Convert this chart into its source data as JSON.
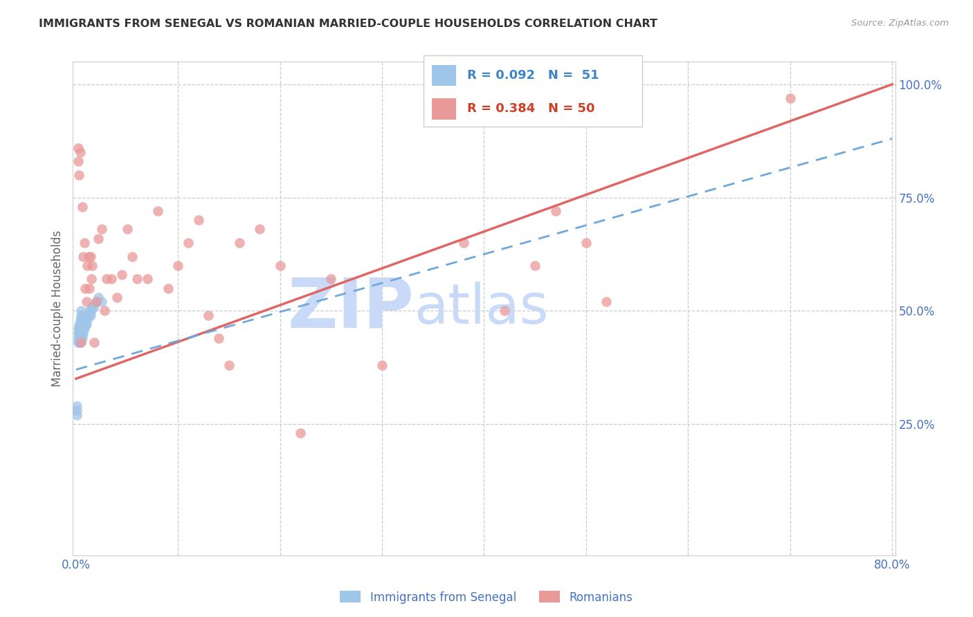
{
  "title": "IMMIGRANTS FROM SENEGAL VS ROMANIAN MARRIED-COUPLE HOUSEHOLDS CORRELATION CHART",
  "source": "Source: ZipAtlas.com",
  "ylabel": "Married-couple Households",
  "xlim": [
    0.0,
    0.8
  ],
  "ylim": [
    0.0,
    1.05
  ],
  "xtick_positions": [
    0.0,
    0.1,
    0.2,
    0.3,
    0.4,
    0.5,
    0.6,
    0.7,
    0.8
  ],
  "xtick_labels": [
    "0.0%",
    "",
    "",
    "",
    "",
    "",
    "",
    "",
    "80.0%"
  ],
  "yticks_right": [
    0.25,
    0.5,
    0.75,
    1.0
  ],
  "ytick_right_labels": [
    "25.0%",
    "50.0%",
    "75.0%",
    "100.0%"
  ],
  "legend_line1": "R = 0.092   N =  51",
  "legend_line2": "R = 0.384   N = 50",
  "legend_label1": "Immigrants from Senegal",
  "legend_label2": "Romanians",
  "blue_dot_color": "#9fc5e8",
  "pink_dot_color": "#ea9999",
  "blue_line_color": "#6fa8dc",
  "pink_line_color": "#e06666",
  "blue_legend_text_color": "#3d85c8",
  "pink_legend_text_color": "#cc4125",
  "right_tick_color": "#4472c4",
  "grid_color": "#cccccc",
  "title_color": "#333333",
  "ylabel_color": "#666666",
  "pink_line_x": [
    0.0,
    0.8
  ],
  "pink_line_y": [
    0.35,
    1.0
  ],
  "blue_line_x": [
    0.0,
    0.8
  ],
  "blue_line_y": [
    0.37,
    0.88
  ],
  "senegal_x": [
    0.001,
    0.001,
    0.001,
    0.002,
    0.002,
    0.002,
    0.002,
    0.003,
    0.003,
    0.003,
    0.003,
    0.003,
    0.004,
    0.004,
    0.004,
    0.004,
    0.004,
    0.004,
    0.005,
    0.005,
    0.005,
    0.005,
    0.005,
    0.005,
    0.005,
    0.006,
    0.006,
    0.006,
    0.006,
    0.007,
    0.007,
    0.007,
    0.007,
    0.008,
    0.008,
    0.008,
    0.008,
    0.009,
    0.009,
    0.01,
    0.01,
    0.011,
    0.012,
    0.013,
    0.014,
    0.015,
    0.016,
    0.018,
    0.02,
    0.022,
    0.025
  ],
  "senegal_y": [
    0.27,
    0.28,
    0.29,
    0.43,
    0.44,
    0.45,
    0.46,
    0.43,
    0.44,
    0.45,
    0.46,
    0.47,
    0.43,
    0.44,
    0.45,
    0.46,
    0.47,
    0.48,
    0.44,
    0.45,
    0.46,
    0.47,
    0.48,
    0.49,
    0.5,
    0.44,
    0.45,
    0.46,
    0.47,
    0.45,
    0.46,
    0.47,
    0.48,
    0.46,
    0.47,
    0.48,
    0.49,
    0.47,
    0.48,
    0.47,
    0.49,
    0.48,
    0.49,
    0.5,
    0.49,
    0.5,
    0.51,
    0.51,
    0.52,
    0.53,
    0.52
  ],
  "romanian_x": [
    0.002,
    0.002,
    0.003,
    0.004,
    0.005,
    0.006,
    0.007,
    0.008,
    0.009,
    0.01,
    0.011,
    0.012,
    0.013,
    0.014,
    0.015,
    0.016,
    0.018,
    0.02,
    0.022,
    0.025,
    0.028,
    0.03,
    0.035,
    0.04,
    0.045,
    0.05,
    0.055,
    0.06,
    0.07,
    0.08,
    0.09,
    0.1,
    0.11,
    0.12,
    0.13,
    0.14,
    0.15,
    0.16,
    0.18,
    0.2,
    0.22,
    0.25,
    0.3,
    0.38,
    0.42,
    0.45,
    0.47,
    0.5,
    0.52,
    0.7
  ],
  "romanian_y": [
    0.83,
    0.86,
    0.8,
    0.85,
    0.43,
    0.73,
    0.62,
    0.65,
    0.55,
    0.52,
    0.6,
    0.62,
    0.55,
    0.62,
    0.57,
    0.6,
    0.43,
    0.52,
    0.66,
    0.68,
    0.5,
    0.57,
    0.57,
    0.53,
    0.58,
    0.68,
    0.62,
    0.57,
    0.57,
    0.72,
    0.55,
    0.6,
    0.65,
    0.7,
    0.49,
    0.44,
    0.38,
    0.65,
    0.68,
    0.6,
    0.23,
    0.57,
    0.38,
    0.65,
    0.5,
    0.6,
    0.72,
    0.65,
    0.52,
    0.97
  ]
}
